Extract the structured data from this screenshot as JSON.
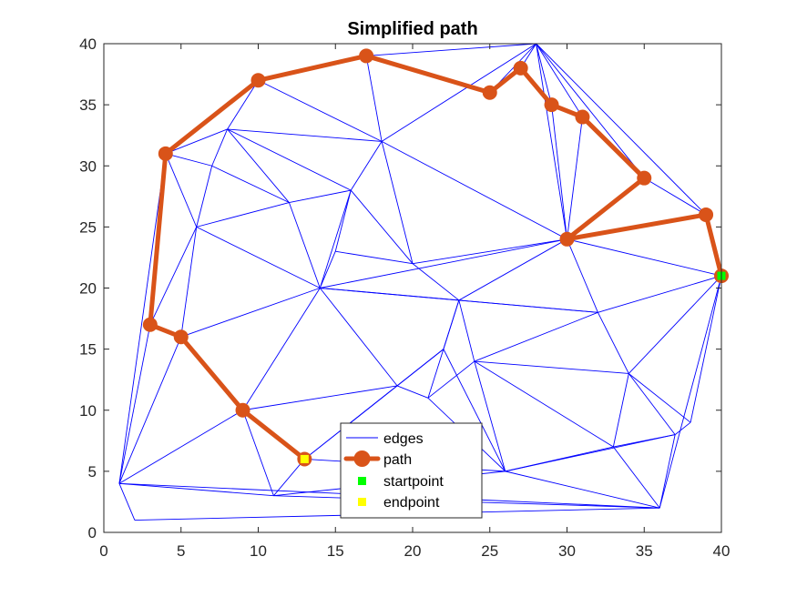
{
  "chart_data": {
    "type": "line",
    "title": "Simplified path",
    "xlabel": "",
    "ylabel": "",
    "xlim": [
      0,
      40
    ],
    "ylim": [
      0,
      40
    ],
    "xticks": [
      0,
      5,
      10,
      15,
      20,
      25,
      30,
      35,
      40
    ],
    "yticks": [
      0,
      5,
      10,
      15,
      20,
      25,
      30,
      35,
      40
    ],
    "grid": false,
    "legend_location": "bottom-center",
    "colors": {
      "edges": "#0000ff",
      "path": "#d95319",
      "startpoint": "#00ff00",
      "endpoint": "#ffff00",
      "axes": "#262626"
    },
    "legend": [
      {
        "key": "edges",
        "label": "edges"
      },
      {
        "key": "path",
        "label": "path"
      },
      {
        "key": "startpoint",
        "label": "startpoint"
      },
      {
        "key": "endpoint",
        "label": "endpoint"
      }
    ],
    "nodes": [
      [
        1,
        4
      ],
      [
        2,
        1
      ],
      [
        3,
        17
      ],
      [
        4,
        31
      ],
      [
        5,
        16
      ],
      [
        6,
        25
      ],
      [
        7,
        30
      ],
      [
        8,
        33
      ],
      [
        9,
        10
      ],
      [
        10,
        37
      ],
      [
        11,
        3
      ],
      [
        12,
        27
      ],
      [
        13,
        6
      ],
      [
        14,
        20
      ],
      [
        15,
        23
      ],
      [
        16,
        28
      ],
      [
        17,
        39
      ],
      [
        18,
        32
      ],
      [
        19,
        12
      ],
      [
        20,
        22
      ],
      [
        21,
        11
      ],
      [
        22,
        15
      ],
      [
        23,
        19
      ],
      [
        24,
        14
      ],
      [
        25,
        36
      ],
      [
        26,
        5
      ],
      [
        27,
        38
      ],
      [
        28,
        40
      ],
      [
        29,
        35
      ],
      [
        30,
        24
      ],
      [
        31,
        34
      ],
      [
        32,
        18
      ],
      [
        33,
        7
      ],
      [
        34,
        13
      ],
      [
        35,
        29
      ],
      [
        36,
        2
      ],
      [
        37,
        8
      ],
      [
        38,
        9
      ],
      [
        39,
        26
      ],
      [
        40,
        21
      ]
    ],
    "edges": [
      [
        [
          1,
          4
        ],
        [
          2,
          1
        ]
      ],
      [
        [
          1,
          4
        ],
        [
          3,
          17
        ]
      ],
      [
        [
          1,
          4
        ],
        [
          4,
          31
        ]
      ],
      [
        [
          1,
          4
        ],
        [
          5,
          16
        ]
      ],
      [
        [
          1,
          4
        ],
        [
          9,
          10
        ]
      ],
      [
        [
          1,
          4
        ],
        [
          11,
          3
        ]
      ],
      [
        [
          1,
          4
        ],
        [
          36,
          2
        ]
      ],
      [
        [
          2,
          1
        ],
        [
          36,
          2
        ]
      ],
      [
        [
          3,
          17
        ],
        [
          4,
          31
        ]
      ],
      [
        [
          3,
          17
        ],
        [
          5,
          16
        ]
      ],
      [
        [
          3,
          17
        ],
        [
          6,
          25
        ]
      ],
      [
        [
          4,
          31
        ],
        [
          7,
          30
        ]
      ],
      [
        [
          4,
          31
        ],
        [
          8,
          33
        ]
      ],
      [
        [
          4,
          31
        ],
        [
          6,
          25
        ]
      ],
      [
        [
          4,
          31
        ],
        [
          10,
          37
        ]
      ],
      [
        [
          5,
          16
        ],
        [
          6,
          25
        ]
      ],
      [
        [
          5,
          16
        ],
        [
          14,
          20
        ]
      ],
      [
        [
          5,
          16
        ],
        [
          9,
          10
        ]
      ],
      [
        [
          6,
          25
        ],
        [
          7,
          30
        ]
      ],
      [
        [
          6,
          25
        ],
        [
          12,
          27
        ]
      ],
      [
        [
          6,
          25
        ],
        [
          14,
          20
        ]
      ],
      [
        [
          7,
          30
        ],
        [
          8,
          33
        ]
      ],
      [
        [
          7,
          30
        ],
        [
          12,
          27
        ]
      ],
      [
        [
          8,
          33
        ],
        [
          10,
          37
        ]
      ],
      [
        [
          8,
          33
        ],
        [
          12,
          27
        ]
      ],
      [
        [
          8,
          33
        ],
        [
          16,
          28
        ]
      ],
      [
        [
          8,
          33
        ],
        [
          18,
          32
        ]
      ],
      [
        [
          9,
          10
        ],
        [
          13,
          6
        ]
      ],
      [
        [
          9,
          10
        ],
        [
          11,
          3
        ]
      ],
      [
        [
          9,
          10
        ],
        [
          14,
          20
        ]
      ],
      [
        [
          9,
          10
        ],
        [
          19,
          12
        ]
      ],
      [
        [
          10,
          37
        ],
        [
          17,
          39
        ]
      ],
      [
        [
          10,
          37
        ],
        [
          18,
          32
        ]
      ],
      [
        [
          11,
          3
        ],
        [
          13,
          6
        ]
      ],
      [
        [
          11,
          3
        ],
        [
          36,
          2
        ]
      ],
      [
        [
          11,
          3
        ],
        [
          26,
          5
        ]
      ],
      [
        [
          12,
          27
        ],
        [
          14,
          20
        ]
      ],
      [
        [
          12,
          27
        ],
        [
          16,
          28
        ]
      ],
      [
        [
          13,
          6
        ],
        [
          19,
          12
        ]
      ],
      [
        [
          13,
          6
        ],
        [
          22,
          15
        ]
      ],
      [
        [
          13,
          6
        ],
        [
          26,
          5
        ]
      ],
      [
        [
          14,
          20
        ],
        [
          15,
          23
        ]
      ],
      [
        [
          14,
          20
        ],
        [
          16,
          28
        ]
      ],
      [
        [
          14,
          20
        ],
        [
          19,
          12
        ]
      ],
      [
        [
          14,
          20
        ],
        [
          23,
          19
        ]
      ],
      [
        [
          14,
          20
        ],
        [
          30,
          24
        ]
      ],
      [
        [
          14,
          20
        ],
        [
          32,
          18
        ]
      ],
      [
        [
          15,
          23
        ],
        [
          16,
          28
        ]
      ],
      [
        [
          15,
          23
        ],
        [
          20,
          22
        ]
      ],
      [
        [
          16,
          28
        ],
        [
          18,
          32
        ]
      ],
      [
        [
          16,
          28
        ],
        [
          20,
          22
        ]
      ],
      [
        [
          17,
          39
        ],
        [
          18,
          32
        ]
      ],
      [
        [
          17,
          39
        ],
        [
          25,
          36
        ]
      ],
      [
        [
          17,
          39
        ],
        [
          28,
          40
        ]
      ],
      [
        [
          18,
          32
        ],
        [
          20,
          22
        ]
      ],
      [
        [
          18,
          32
        ],
        [
          28,
          40
        ]
      ],
      [
        [
          18,
          32
        ],
        [
          30,
          24
        ]
      ],
      [
        [
          19,
          12
        ],
        [
          21,
          11
        ]
      ],
      [
        [
          19,
          12
        ],
        [
          22,
          15
        ]
      ],
      [
        [
          20,
          22
        ],
        [
          23,
          19
        ]
      ],
      [
        [
          20,
          22
        ],
        [
          30,
          24
        ]
      ],
      [
        [
          21,
          11
        ],
        [
          23,
          19
        ]
      ],
      [
        [
          21,
          11
        ],
        [
          24,
          14
        ]
      ],
      [
        [
          21,
          11
        ],
        [
          26,
          5
        ]
      ],
      [
        [
          22,
          15
        ],
        [
          23,
          19
        ]
      ],
      [
        [
          22,
          15
        ],
        [
          26,
          5
        ]
      ],
      [
        [
          23,
          19
        ],
        [
          24,
          14
        ]
      ],
      [
        [
          23,
          19
        ],
        [
          30,
          24
        ]
      ],
      [
        [
          23,
          19
        ],
        [
          32,
          18
        ]
      ],
      [
        [
          24,
          14
        ],
        [
          26,
          5
        ]
      ],
      [
        [
          24,
          14
        ],
        [
          32,
          18
        ]
      ],
      [
        [
          24,
          14
        ],
        [
          33,
          7
        ]
      ],
      [
        [
          24,
          14
        ],
        [
          34,
          13
        ]
      ],
      [
        [
          25,
          36
        ],
        [
          27,
          38
        ]
      ],
      [
        [
          25,
          36
        ],
        [
          28,
          40
        ]
      ],
      [
        [
          26,
          5
        ],
        [
          33,
          7
        ]
      ],
      [
        [
          26,
          5
        ],
        [
          36,
          2
        ]
      ],
      [
        [
          26,
          5
        ],
        [
          37,
          8
        ]
      ],
      [
        [
          27,
          38
        ],
        [
          28,
          40
        ]
      ],
      [
        [
          27,
          38
        ],
        [
          29,
          35
        ]
      ],
      [
        [
          28,
          40
        ],
        [
          29,
          35
        ]
      ],
      [
        [
          28,
          40
        ],
        [
          30,
          24
        ]
      ],
      [
        [
          28,
          40
        ],
        [
          31,
          34
        ]
      ],
      [
        [
          28,
          40
        ],
        [
          35,
          29
        ]
      ],
      [
        [
          28,
          40
        ],
        [
          39,
          26
        ]
      ],
      [
        [
          29,
          35
        ],
        [
          30,
          24
        ]
      ],
      [
        [
          29,
          35
        ],
        [
          31,
          34
        ]
      ],
      [
        [
          30,
          24
        ],
        [
          31,
          34
        ]
      ],
      [
        [
          30,
          24
        ],
        [
          32,
          18
        ]
      ],
      [
        [
          30,
          24
        ],
        [
          35,
          29
        ]
      ],
      [
        [
          30,
          24
        ],
        [
          39,
          26
        ]
      ],
      [
        [
          30,
          24
        ],
        [
          40,
          21
        ]
      ],
      [
        [
          31,
          34
        ],
        [
          35,
          29
        ]
      ],
      [
        [
          32,
          18
        ],
        [
          34,
          13
        ]
      ],
      [
        [
          32,
          18
        ],
        [
          40,
          21
        ]
      ],
      [
        [
          33,
          7
        ],
        [
          34,
          13
        ]
      ],
      [
        [
          33,
          7
        ],
        [
          36,
          2
        ]
      ],
      [
        [
          33,
          7
        ],
        [
          37,
          8
        ]
      ],
      [
        [
          34,
          13
        ],
        [
          37,
          8
        ]
      ],
      [
        [
          34,
          13
        ],
        [
          38,
          9
        ]
      ],
      [
        [
          34,
          13
        ],
        [
          40,
          21
        ]
      ],
      [
        [
          35,
          29
        ],
        [
          39,
          26
        ]
      ],
      [
        [
          36,
          2
        ],
        [
          37,
          8
        ]
      ],
      [
        [
          36,
          2
        ],
        [
          40,
          21
        ]
      ],
      [
        [
          37,
          8
        ],
        [
          38,
          9
        ]
      ],
      [
        [
          38,
          9
        ],
        [
          40,
          21
        ]
      ],
      [
        [
          39,
          26
        ],
        [
          40,
          21
        ]
      ]
    ],
    "path": [
      [
        40,
        21
      ],
      [
        39,
        26
      ],
      [
        30,
        24
      ],
      [
        35,
        29
      ],
      [
        31,
        34
      ],
      [
        29,
        35
      ],
      [
        27,
        38
      ],
      [
        25,
        36
      ],
      [
        17,
        39
      ],
      [
        10,
        37
      ],
      [
        4,
        31
      ],
      [
        3,
        17
      ],
      [
        5,
        16
      ],
      [
        9,
        10
      ],
      [
        13,
        6
      ]
    ],
    "startpoint": [
      40,
      21
    ],
    "endpoint": [
      13,
      6
    ]
  }
}
